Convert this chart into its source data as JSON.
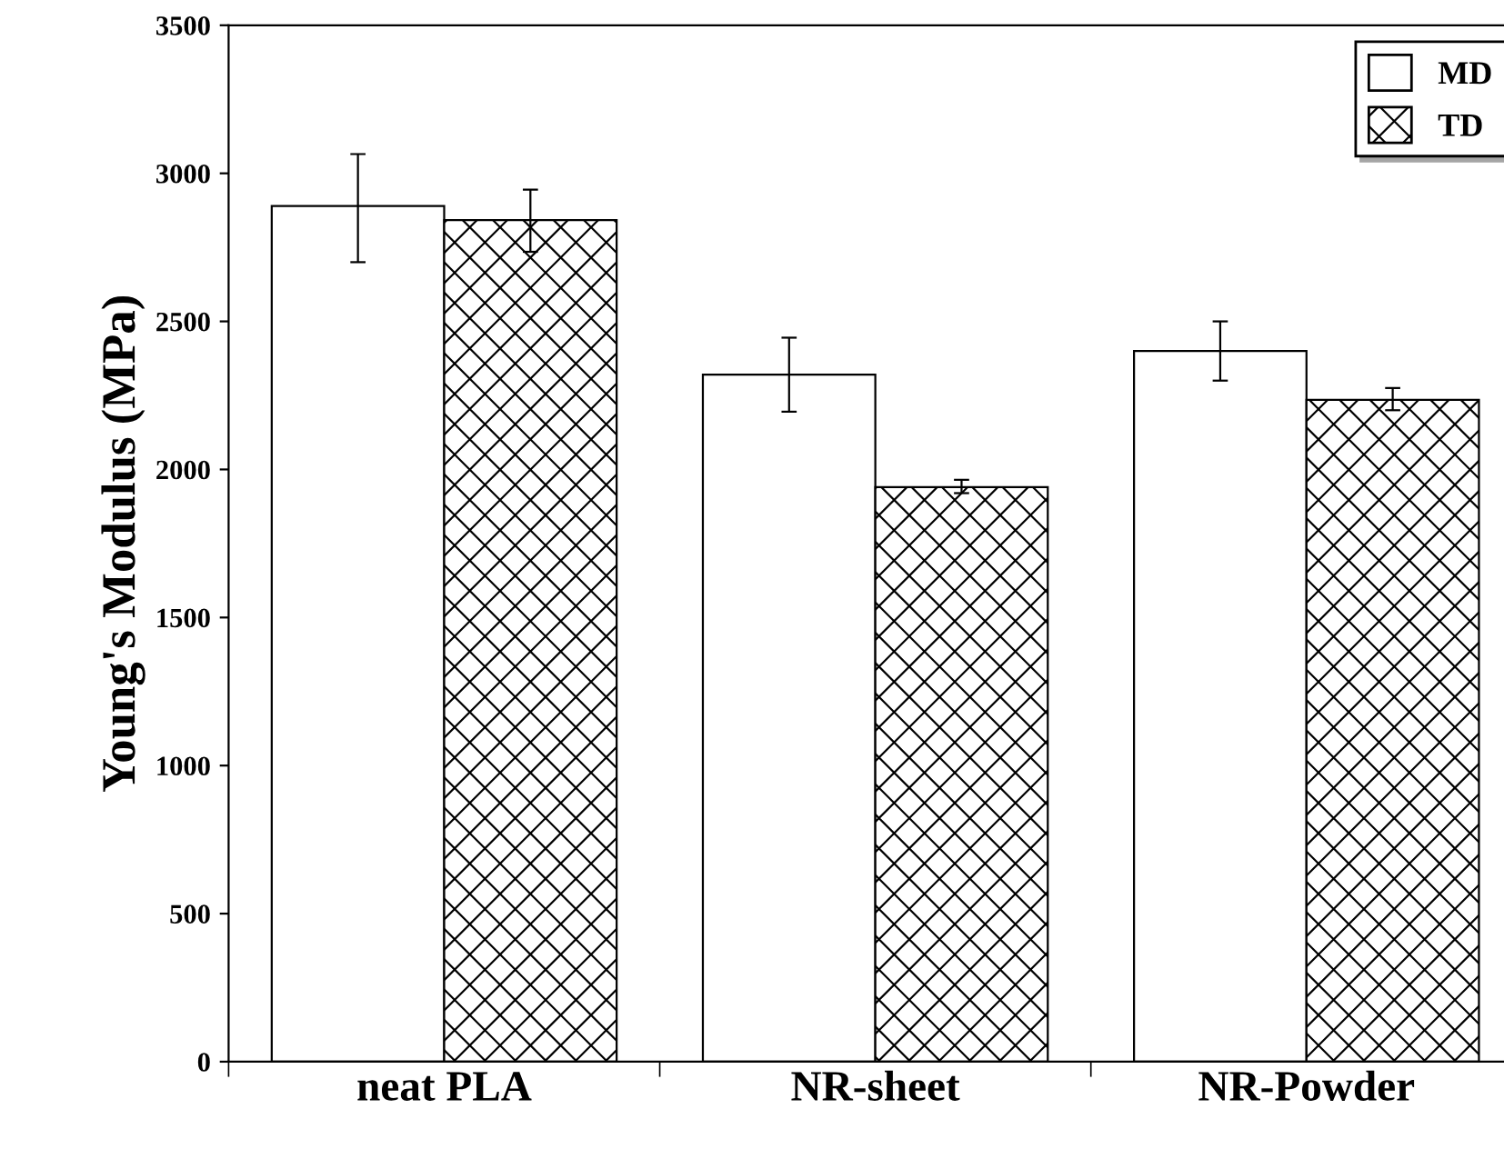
{
  "chart_data": {
    "type": "bar",
    "ylabel": "Young's Modulus (MPa)",
    "categories": [
      "neat PLA",
      "NR-sheet",
      "NR-Powder"
    ],
    "series": [
      {
        "name": "MD",
        "color": "#ffffff",
        "values": [
          2890,
          2320,
          2400
        ],
        "errors": [
          [
            2700,
            3065
          ],
          [
            2195,
            2445
          ],
          [
            2300,
            2500
          ]
        ]
      },
      {
        "name": "TD",
        "color": "#000000",
        "values": [
          2842,
          1940,
          2235
        ],
        "errors": [
          [
            2735,
            2945
          ],
          [
            1920,
            1965
          ],
          [
            2200,
            2275
          ]
        ]
      }
    ],
    "ylim": [
      0,
      3500
    ],
    "yticks": [
      0,
      500,
      1000,
      1500,
      2000,
      2500,
      3000,
      3500
    ],
    "grid": false,
    "legend": "top right"
  }
}
